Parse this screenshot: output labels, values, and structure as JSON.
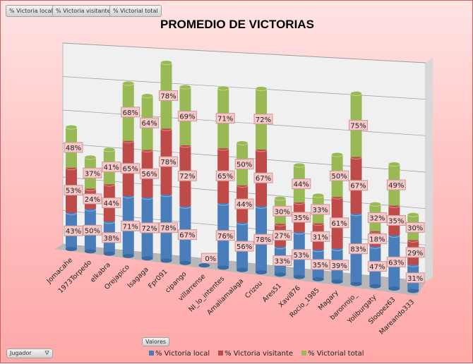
{
  "field_buttons": [
    "% Victoria local",
    "% Victoria visitante",
    "% Victorial total"
  ],
  "axis_button": "Valores",
  "filter_button": "Jugador",
  "chart_data": {
    "type": "bar",
    "stacked": true,
    "three_d": true,
    "title": "PROMEDIO DE VICTORIAS",
    "categories": [
      "Jomacahe",
      "1973Torpedo",
      "elkabra",
      "Orejapico",
      "Isagaga",
      "Fpr091",
      "cipango",
      "villarrense",
      "NI_lo_intentes",
      "Amaliamalaga",
      "Crizou",
      "Ares51",
      "Xavi876",
      "Rocio_1985",
      "Magary",
      "baronrojo_",
      "Yoliburgaty",
      "Sloopez63",
      "Mareando333"
    ],
    "series": [
      {
        "name": "% Victoria local",
        "color": "#4a7ebb",
        "values": [
          43,
          50,
          38,
          71,
          72,
          78,
          67,
          0,
          76,
          56,
          78,
          33,
          53,
          35,
          39,
          83,
          47,
          63,
          31
        ]
      },
      {
        "name": "% Victoria visitante",
        "color": "#be4b48",
        "values": [
          53,
          24,
          44,
          65,
          56,
          78,
          72,
          0,
          65,
          44,
          67,
          27,
          35,
          31,
          61,
          67,
          18,
          35,
          29
        ]
      },
      {
        "name": "% Victorial total",
        "color": "#98b954",
        "values": [
          48,
          37,
          41,
          68,
          64,
          78,
          69,
          0,
          71,
          50,
          72,
          30,
          44,
          33,
          50,
          75,
          32,
          49,
          30
        ]
      }
    ],
    "legend": "bottom",
    "grid": true
  }
}
